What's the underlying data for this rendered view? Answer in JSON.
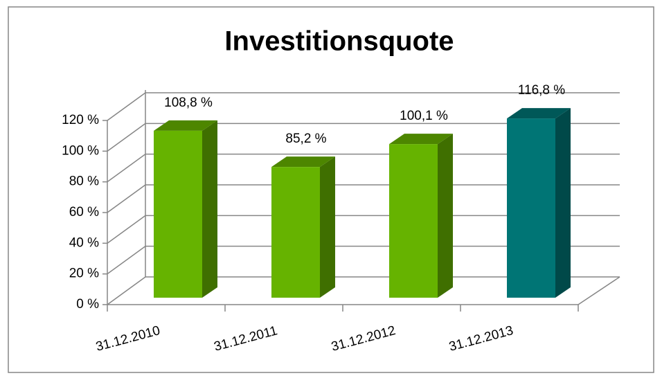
{
  "chart_data": {
    "type": "bar",
    "title": "Investitionsquote",
    "categories": [
      "31.12.2010",
      "31.12.2011",
      "31.12.2012",
      "31.12.2013"
    ],
    "values": [
      108.8,
      85.2,
      100.1,
      116.8
    ],
    "value_labels": [
      "108,8 %",
      "85,2 %",
      "100,1 %",
      "116,8 %"
    ],
    "colors": [
      "#66b300",
      "#66b300",
      "#66b300",
      "#007575"
    ],
    "ylim": [
      0,
      120
    ],
    "yticks": [
      {
        "value": 0,
        "label": "0 %"
      },
      {
        "value": 20,
        "label": "20 %"
      },
      {
        "value": 40,
        "label": "40 %"
      },
      {
        "value": 60,
        "label": "60 %"
      },
      {
        "value": 80,
        "label": "80 %"
      },
      {
        "value": 100,
        "label": "100 %"
      },
      {
        "value": 120,
        "label": "120 %"
      }
    ],
    "grid": true
  }
}
